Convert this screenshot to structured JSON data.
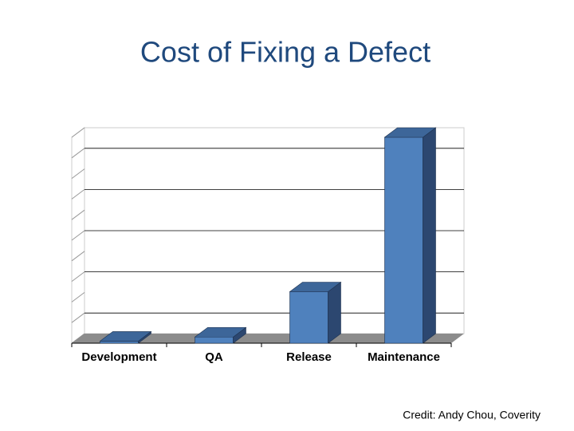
{
  "chart_data": {
    "type": "bar3d",
    "title": "Cost of Fixing a Defect",
    "categories": [
      "Development",
      "QA",
      "Release",
      "Maintenance"
    ],
    "values": [
      0.1,
      0.3,
      2.5,
      10
    ],
    "color": "#4f81bd",
    "ylim": [
      0,
      10
    ],
    "yticks": [
      1,
      3,
      5,
      7,
      9
    ],
    "grid": true,
    "credit": "Credit: Andy Chou, Coverity"
  }
}
